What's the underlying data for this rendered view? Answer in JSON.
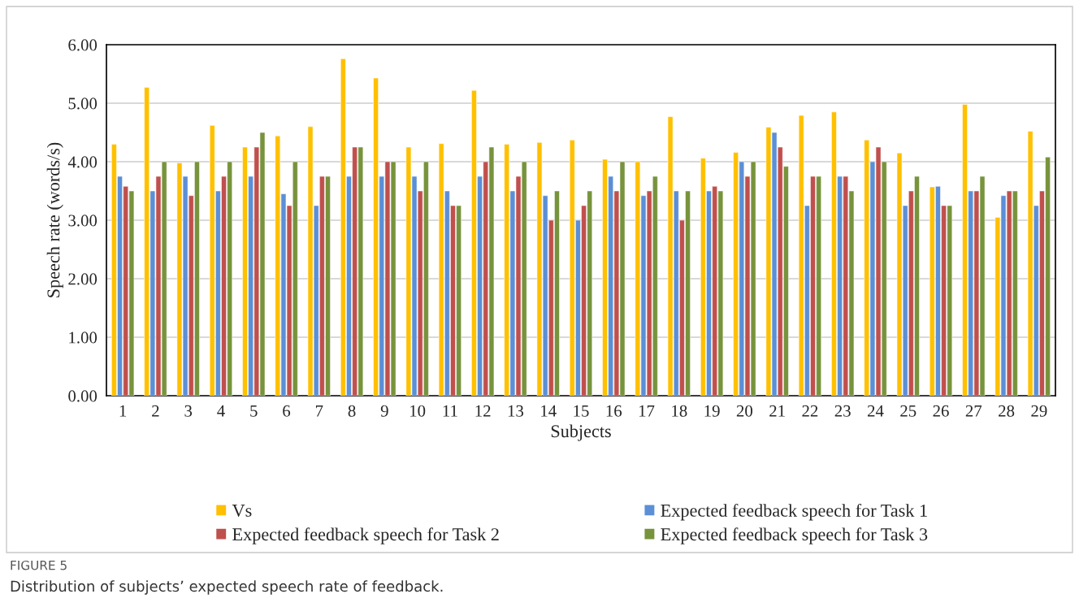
{
  "chart_data": {
    "type": "bar",
    "xlabel": "Subjects",
    "ylabel": "Speech rate (words/s)",
    "categories": [
      "1",
      "2",
      "3",
      "4",
      "5",
      "6",
      "7",
      "8",
      "9",
      "10",
      "11",
      "12",
      "13",
      "14",
      "15",
      "16",
      "17",
      "18",
      "19",
      "20",
      "21",
      "22",
      "23",
      "24",
      "25",
      "26",
      "27",
      "28",
      "29"
    ],
    "series": [
      {
        "name": "Vs",
        "color": "#ffc000",
        "values": [
          4.3,
          5.27,
          3.98,
          4.62,
          4.25,
          4.44,
          4.6,
          5.76,
          5.43,
          4.25,
          4.31,
          5.22,
          4.3,
          4.33,
          4.37,
          4.04,
          4.0,
          4.77,
          4.06,
          4.16,
          4.59,
          4.79,
          4.85,
          4.37,
          4.15,
          3.57,
          4.98,
          3.05,
          4.52
        ]
      },
      {
        "name": "Expected feedback speech for Task 1",
        "color": "#5b8fd6",
        "values": [
          3.75,
          3.5,
          3.75,
          3.5,
          3.75,
          3.45,
          3.25,
          3.75,
          3.75,
          3.75,
          3.5,
          3.75,
          3.5,
          3.42,
          3.0,
          3.75,
          3.42,
          3.5,
          3.5,
          4.0,
          4.5,
          3.25,
          3.75,
          4.0,
          3.25,
          3.58,
          3.5,
          3.42,
          3.25
        ]
      },
      {
        "name": "Expected feedback speech for Task 2",
        "color": "#c0504d",
        "values": [
          3.58,
          3.75,
          3.42,
          3.75,
          4.25,
          3.25,
          3.75,
          4.25,
          4.0,
          3.5,
          3.25,
          4.0,
          3.75,
          3.0,
          3.25,
          3.5,
          3.5,
          3.0,
          3.58,
          3.75,
          4.25,
          3.75,
          3.75,
          4.25,
          3.5,
          3.25,
          3.5,
          3.5,
          3.5
        ]
      },
      {
        "name": "Expected feedback speech for Task 3",
        "color": "#77933c",
        "values": [
          3.5,
          4.0,
          4.0,
          4.0,
          4.5,
          4.0,
          3.75,
          4.25,
          4.0,
          4.0,
          3.25,
          4.25,
          4.0,
          3.5,
          3.5,
          4.0,
          3.75,
          3.5,
          3.5,
          4.0,
          3.92,
          3.75,
          3.5,
          4.0,
          3.75,
          3.25,
          3.75,
          3.5,
          4.08
        ]
      }
    ],
    "ylim": [
      0,
      6
    ],
    "yticks": [
      {
        "value": 0,
        "label": "0.00"
      },
      {
        "value": 1,
        "label": "1.00"
      },
      {
        "value": 2,
        "label": "2.00"
      },
      {
        "value": 3,
        "label": "3.00"
      },
      {
        "value": 4,
        "label": "4.00"
      },
      {
        "value": 5,
        "label": "5.00"
      },
      {
        "value": 6,
        "label": "6.00"
      }
    ],
    "grid": "y",
    "legend": "bottom",
    "annotations": [
      "FIGURE 5",
      "Distribution of subjects’ expected speech rate of feedback."
    ]
  }
}
